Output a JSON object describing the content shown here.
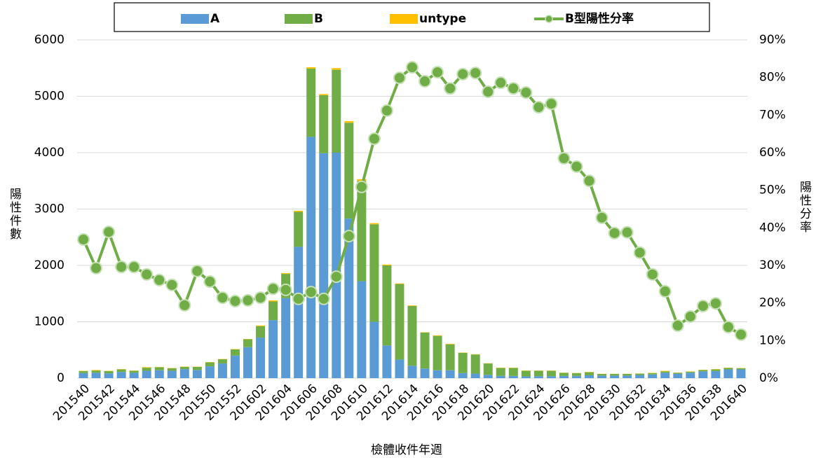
{
  "chart_data": {
    "type": "bar",
    "stacked": true,
    "x_label": "檢體收件年週",
    "y_label": "陽性件數",
    "y2_label": "陽性分率",
    "categories": [
      "201540",
      null,
      "201542",
      null,
      "201544",
      null,
      "201546",
      null,
      "201548",
      null,
      "201550",
      null,
      "201552",
      null,
      "201602",
      null,
      "201604",
      null,
      "201606",
      null,
      "201608",
      null,
      "201610",
      null,
      "201612",
      null,
      "201614",
      null,
      "201616",
      null,
      "201618",
      null,
      "201620",
      null,
      "201622",
      null,
      "201624",
      null,
      "201626",
      null,
      "201628",
      null,
      "201630",
      null,
      "201632",
      null,
      "201634",
      null,
      "201636",
      null,
      "201638",
      null,
      "201640"
    ],
    "series": [
      {
        "name": "A",
        "color": "#5b9bd5",
        "values": [
          90,
          95,
          85,
          110,
          95,
          130,
          140,
          130,
          160,
          145,
          210,
          260,
          400,
          550,
          720,
          1030,
          1420,
          2330,
          4280,
          3990,
          4000,
          2830,
          1720,
          1000,
          580,
          330,
          220,
          170,
          140,
          140,
          90,
          80,
          60,
          40,
          40,
          30,
          35,
          35,
          40,
          40,
          50,
          45,
          45,
          45,
          55,
          65,
          95,
          80,
          95,
          120,
          125,
          155,
          155
        ]
      },
      {
        "name": "B",
        "color": "#70ad47",
        "values": [
          35,
          40,
          40,
          45,
          35,
          55,
          55,
          45,
          40,
          55,
          70,
          75,
          110,
          140,
          200,
          330,
          430,
          620,
          1210,
          1030,
          1470,
          1700,
          1780,
          1730,
          1420,
          1340,
          1060,
          640,
          610,
          460,
          360,
          340,
          200,
          140,
          140,
          100,
          95,
          95,
          55,
          50,
          55,
          30,
          30,
          30,
          25,
          25,
          25,
          15,
          20,
          25,
          30,
          25,
          20
        ]
      },
      {
        "name": "untype",
        "color": "#ffc000",
        "values": [
          5,
          10,
          5,
          5,
          5,
          10,
          5,
          5,
          5,
          5,
          5,
          5,
          5,
          5,
          15,
          20,
          15,
          20,
          25,
          20,
          30,
          30,
          30,
          20,
          15,
          10,
          10,
          5,
          10,
          10,
          5,
          5,
          5,
          5,
          5,
          5,
          5,
          5,
          3,
          3,
          5,
          3,
          3,
          3,
          3,
          5,
          10,
          5,
          5,
          5,
          5,
          5,
          5
        ]
      },
      {
        "name": "B型陽性分率",
        "color": "#70ad47",
        "type": "line",
        "axis": "y2",
        "values": [
          36.9,
          29.3,
          38.9,
          29.6,
          29.6,
          27.6,
          26.1,
          24.8,
          19.4,
          28.5,
          25.7,
          21.4,
          20.5,
          20.7,
          21.4,
          23.8,
          23.5,
          21.1,
          22.9,
          21.1,
          27.0,
          37.8,
          50.9,
          63.7,
          71.2,
          79.9,
          82.7,
          79.0,
          81.4,
          77.1,
          80.9,
          81.2,
          76.2,
          78.6,
          77.1,
          76.0,
          72.1,
          73.0,
          58.5,
          56.3,
          52.5,
          42.7,
          38.6,
          38.8,
          33.4,
          27.6,
          23.1,
          14.0,
          16.4,
          19.2,
          19.9,
          13.6,
          11.6
        ]
      }
    ],
    "ylim": [
      0,
      6000
    ],
    "yticks": [
      0,
      1000,
      2000,
      3000,
      4000,
      5000,
      6000
    ],
    "y2lim": [
      0,
      90
    ],
    "y2ticks": [
      {
        "value": 0,
        "label": "0%"
      },
      {
        "value": 10,
        "label": "10%"
      },
      {
        "value": 20,
        "label": "20%"
      },
      {
        "value": 30,
        "label": "30%"
      },
      {
        "value": 40,
        "label": "40%"
      },
      {
        "value": 50,
        "label": "50%"
      },
      {
        "value": 60,
        "label": "60%"
      },
      {
        "value": 70,
        "label": "70%"
      },
      {
        "value": 80,
        "label": "80%"
      },
      {
        "value": 90,
        "label": "90%"
      }
    ],
    "grid": true,
    "legend": "top"
  }
}
